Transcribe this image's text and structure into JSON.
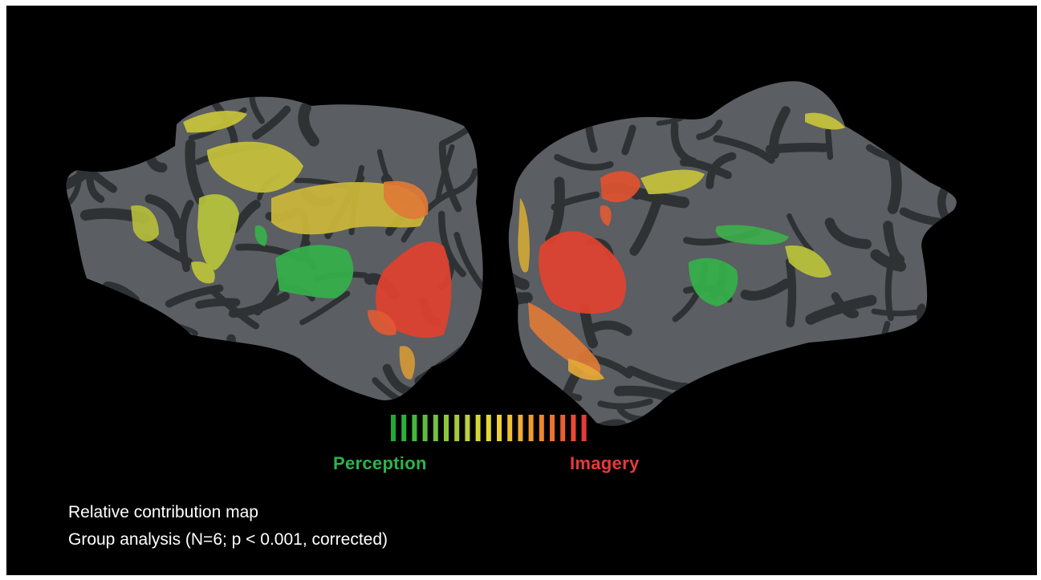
{
  "legend": {
    "perception_label": "Perception",
    "imagery_label": "Imagery",
    "perception_color": "#2db34a",
    "imagery_color": "#e83a3a",
    "scale_colors": [
      "#1fa83c",
      "#2fb03d",
      "#45b83e",
      "#5cbd3f",
      "#74c23f",
      "#8cc63f",
      "#a3cb3e",
      "#bbd03c",
      "#d2d53a",
      "#e3d838",
      "#ecd036",
      "#f0bf35",
      "#f0ac34",
      "#ef9933",
      "#ee8533",
      "#ec7233",
      "#ea5e34",
      "#e84a35",
      "#e63a36"
    ]
  },
  "caption": {
    "title": "Relative contribution map",
    "stats": "Group analysis (N=6;  p < 0.001, corrected)"
  },
  "colors": {
    "background": "#000000",
    "cortex_light": "#5b5e62",
    "cortex_dark": "#2f3235"
  }
}
